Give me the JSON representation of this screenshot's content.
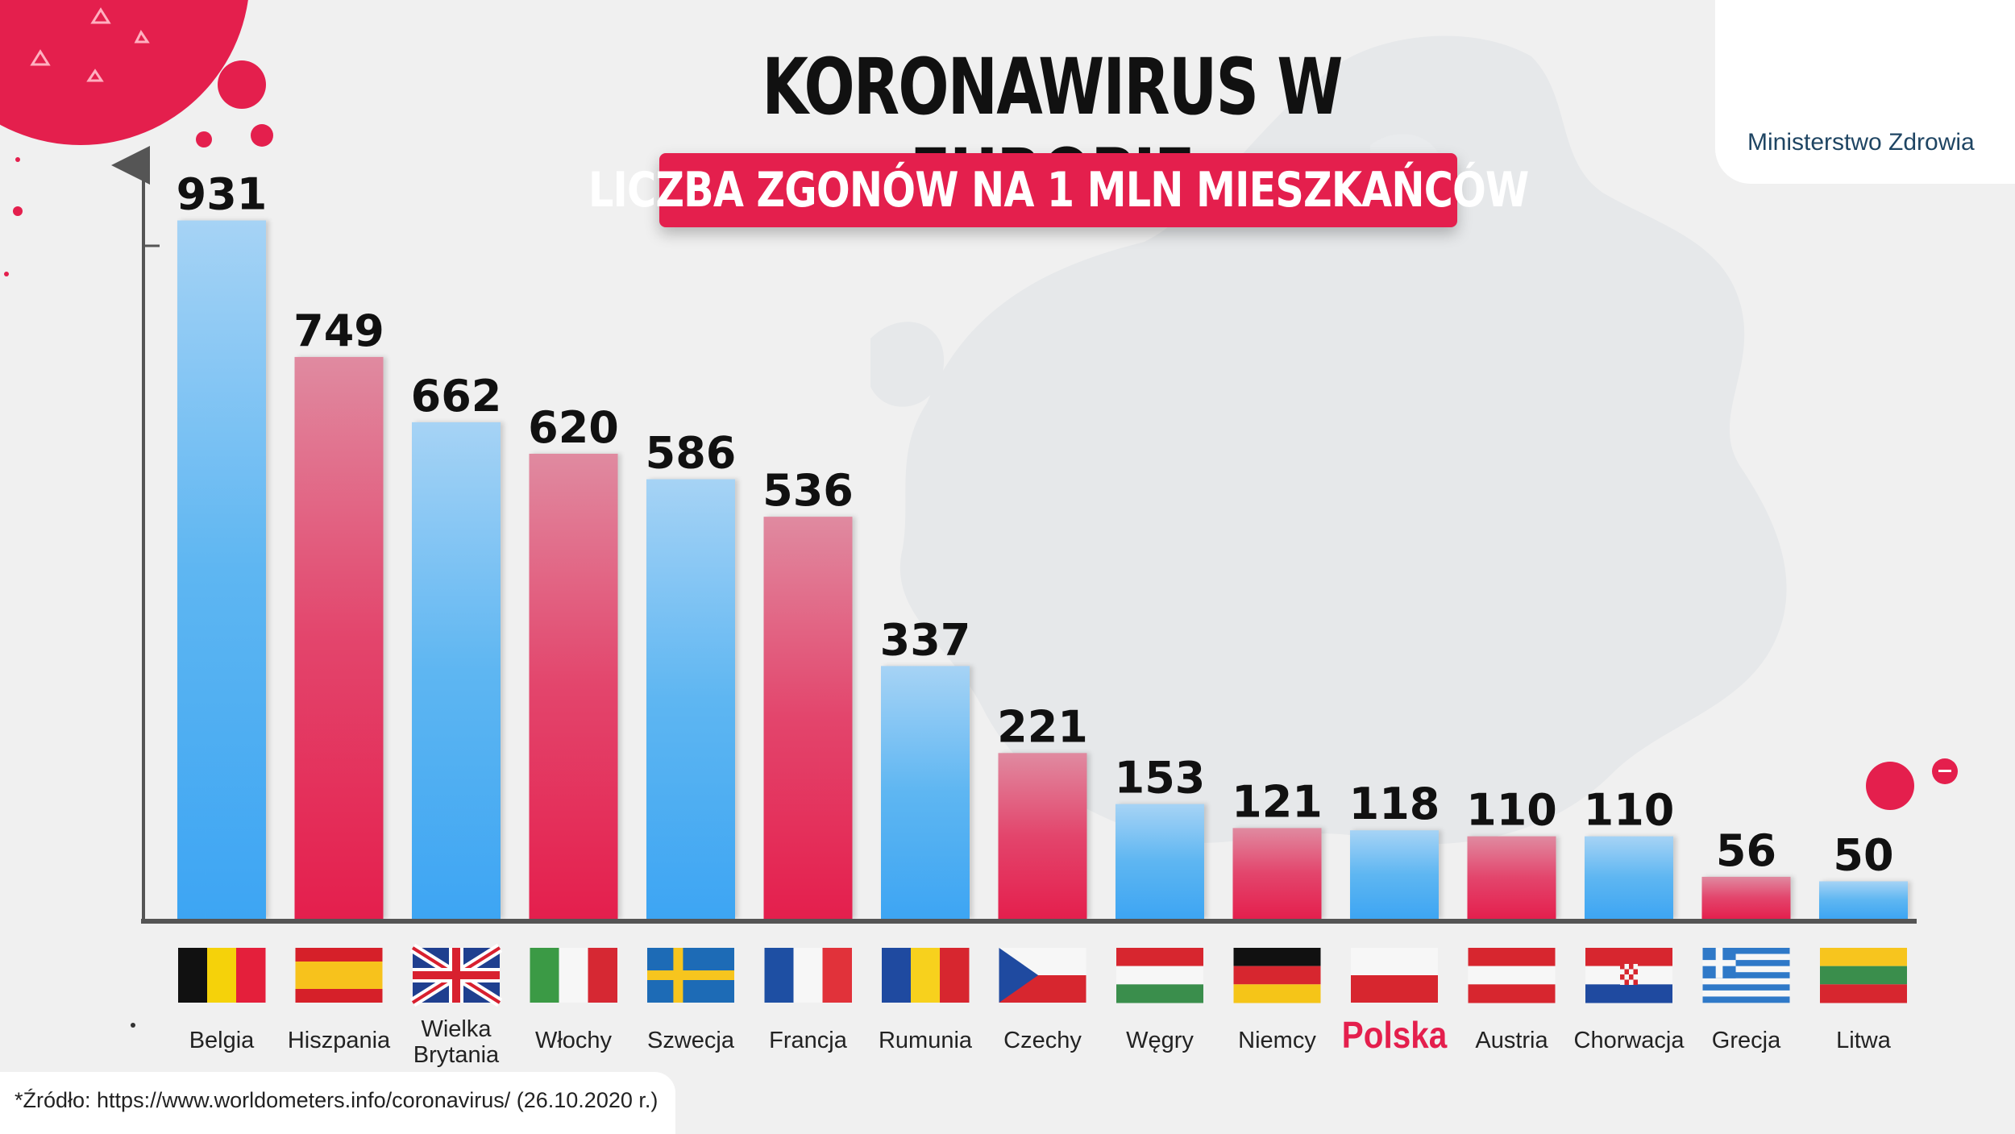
{
  "header": {
    "title": "KORONAWIRUS W EUROPIE",
    "subtitle": "LICZBA ZGONÓW NA 1 MLN MIESZKAŃCÓW"
  },
  "logo": {
    "name": "Ministerstwo Zdrowia",
    "color": "#1e9fd8"
  },
  "source": "*Źródło: https://www.worldometers.info/coronavirus/ (26.10.2020 r.)",
  "colors": {
    "blue": "#3fa8f0",
    "red": "#e41f4d",
    "highlight": "#e41f4d",
    "axis": "#555555"
  },
  "chart_data": {
    "type": "bar",
    "title": "KORONAWIRUS W EUROPIE",
    "subtitle": "LICZBA ZGONÓW NA 1 MLN MIESZKAŃCÓW",
    "xlabel": "",
    "ylabel": "",
    "ylim": [
      0,
      1010
    ],
    "grid": false,
    "legend": "none",
    "highlighted_category": "Polska",
    "categories": [
      "Belgia",
      "Hiszpania",
      "Wielka Brytania",
      "Włochy",
      "Szwecja",
      "Francja",
      "Rumunia",
      "Czechy",
      "Węgry",
      "Niemcy",
      "Polska",
      "Austria",
      "Chorwacja",
      "Grecja",
      "Litwa"
    ],
    "values": [
      931,
      749,
      662,
      620,
      586,
      536,
      337,
      221,
      153,
      121,
      118,
      110,
      110,
      56,
      50
    ],
    "value_labels": [
      "931",
      "749",
      "662",
      "620",
      "586",
      "536",
      "337",
      "221",
      "153",
      "121",
      "118",
      "110",
      "110",
      "56",
      "50"
    ],
    "bar_colors": [
      "blue",
      "red",
      "blue",
      "red",
      "blue",
      "red",
      "blue",
      "red",
      "blue",
      "red",
      "blue",
      "red",
      "blue",
      "red",
      "blue"
    ],
    "category_labels": [
      [
        "Belgia"
      ],
      [
        "Hiszpania"
      ],
      [
        "Wielka",
        "Brytania"
      ],
      [
        "Włochy"
      ],
      [
        "Szwecja"
      ],
      [
        "Francja"
      ],
      [
        "Rumunia"
      ],
      [
        "Czechy"
      ],
      [
        "Węgry"
      ],
      [
        "Niemcy"
      ],
      [
        "Polska"
      ],
      [
        "Austria"
      ],
      [
        "Chorwacja"
      ],
      [
        "Grecja"
      ],
      [
        "Litwa"
      ]
    ],
    "flags": [
      "belgium-flag",
      "spain-flag",
      "uk-flag",
      "italy-flag",
      "sweden-flag",
      "france-flag",
      "romania-flag",
      "czech-flag",
      "hungary-flag",
      "germany-flag",
      "poland-flag",
      "austria-flag",
      "croatia-flag",
      "greece-flag",
      "lithuania-flag"
    ]
  }
}
